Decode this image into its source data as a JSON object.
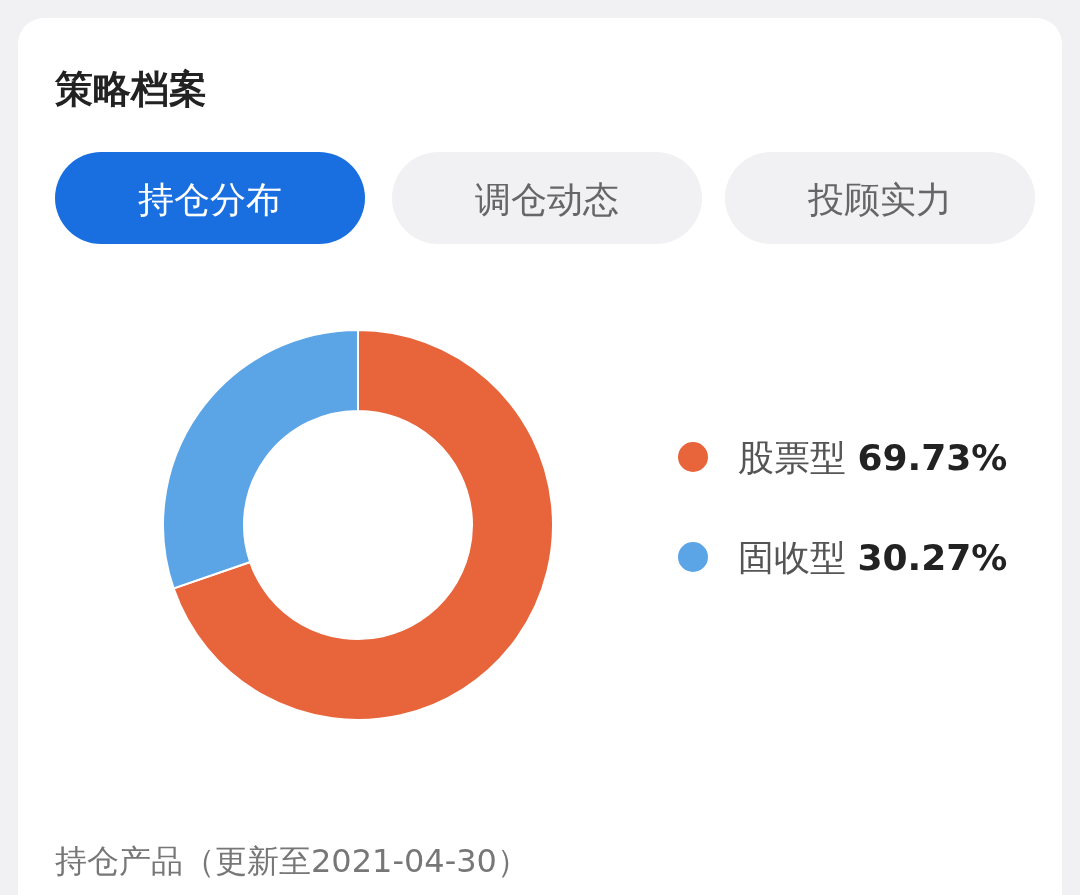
{
  "chart_data": {
    "type": "donut",
    "title": "策略档案",
    "annotations": [
      "持仓分布",
      "调仓动态",
      "投顾实力",
      "持仓产品（更新至2021-04-30）"
    ],
    "categories": [
      "股票型",
      "固收型"
    ],
    "values": [
      69.73,
      30.27
    ],
    "colors": [
      "#e8643a",
      "#5ba4e6"
    ],
    "value_labels": [
      "69.73%",
      "30.27%"
    ],
    "legend": "right"
  }
}
